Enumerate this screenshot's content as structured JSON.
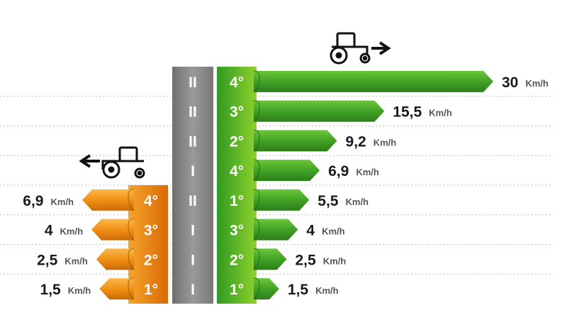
{
  "chart_data": [
    {
      "type": "bar",
      "direction": "forward",
      "icon": "tractor-forward-icon",
      "categories": [
        "4°",
        "3°",
        "2°",
        "4°",
        "1°",
        "3°",
        "2°",
        "1°"
      ],
      "ranges": [
        "II",
        "II",
        "II",
        "I",
        "II",
        "I",
        "I",
        "I"
      ],
      "values": [
        30,
        15.5,
        9.2,
        6.9,
        5.5,
        4,
        2.5,
        1.5
      ],
      "labels": [
        "30",
        "15,5",
        "9,2",
        "6,9",
        "5,5",
        "4",
        "2,5",
        "1,5"
      ],
      "unit": "Km/h",
      "color": "#4caf2a"
    },
    {
      "type": "bar",
      "direction": "reverse",
      "icon": "tractor-reverse-icon",
      "categories": [
        "4°",
        "3°",
        "2°",
        "1°"
      ],
      "ranges": [
        "II",
        "I",
        "I",
        "I"
      ],
      "values": [
        6.9,
        4,
        2.5,
        1.5
      ],
      "labels": [
        "6,9",
        "4",
        "2,5",
        "1,5"
      ],
      "unit": "Km/h",
      "color": "#e87e0c"
    }
  ]
}
